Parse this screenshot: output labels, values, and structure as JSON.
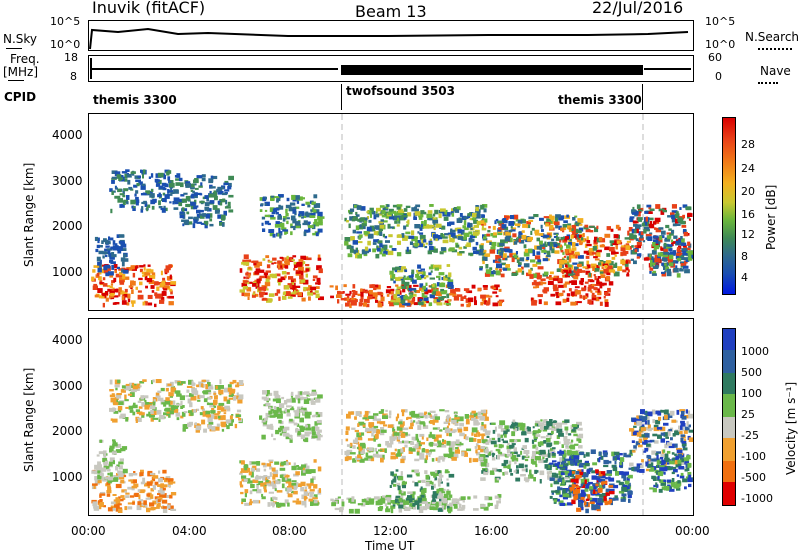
{
  "header": {
    "station": "Inuvik (fitACF)",
    "beam": "Beam 13",
    "date": "22/Jul/2016"
  },
  "top_panels": {
    "nsky_label": "N.Sky",
    "nsky_ticks": [
      "10^5",
      "10^0"
    ],
    "nsearch_label": "N.Search",
    "nsearch_ticks": [
      "10^5",
      "10^0"
    ],
    "freq_label": "Freq.",
    "freq_unit": "[MHz]",
    "freq_ticks": [
      "18",
      "8"
    ],
    "nave_label": "Nave",
    "nave_ticks": [
      "60",
      "0"
    ],
    "cpid_label": "CPID",
    "cpid_segments": [
      "themis 3300",
      "twofsound 3503",
      "themis 3300"
    ]
  },
  "chart_data": [
    {
      "type": "heatmap",
      "name": "power-panel",
      "ylabel": "Slant Range [km]",
      "yticks": [
        "1000",
        "2000",
        "3000",
        "4000"
      ],
      "ylim": [
        200,
        4600
      ],
      "colorbar_label": "Power [dB]",
      "colorbar_ticks": [
        "4",
        "8",
        "12",
        "16",
        "20",
        "24",
        "28"
      ],
      "colors": [
        "#0018e0",
        "#1a4fb0",
        "#2e6a8c",
        "#3f8a55",
        "#6ab63c",
        "#c8c830",
        "#f2b020",
        "#f07a18",
        "#e84018",
        "#d80000"
      ]
    },
    {
      "type": "heatmap",
      "name": "velocity-panel",
      "ylabel": "Slant Range [km]",
      "yticks": [
        "1000",
        "2000",
        "3000",
        "4000"
      ],
      "ylim": [
        200,
        4600
      ],
      "colorbar_label": "Velocity [m s⁻¹]",
      "colorbar_ticks": [
        "1000",
        "500",
        "100",
        "25",
        "-25",
        "-100",
        "-500",
        "-1000"
      ],
      "colors": [
        "#2040c0",
        "#2e60a0",
        "#2f7a60",
        "#6ab84a",
        "#c8c8c0",
        "#f0a030",
        "#f07010",
        "#e83010",
        "#e00000"
      ]
    }
  ],
  "xaxis": {
    "ticks": [
      "00:00",
      "04:00",
      "08:00",
      "12:00",
      "16:00",
      "20:00",
      "00:00"
    ],
    "label": "Time UT"
  }
}
